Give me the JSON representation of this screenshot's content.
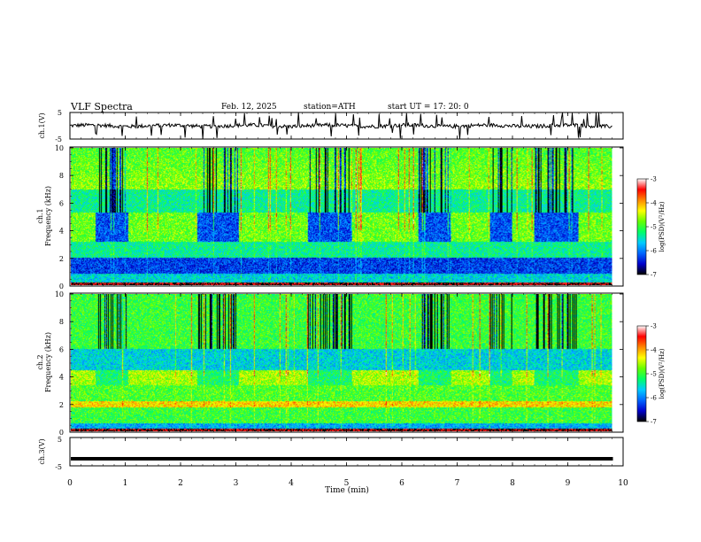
{
  "header": {
    "title": "VLF  Spectra",
    "date": "Feb. 12, 2025",
    "station": "station=ATH",
    "start": "start  UT  =    17: 20: 0"
  },
  "chart_data": [
    {
      "type": "line",
      "name": "ch1-waveform",
      "ylabel": "ch.1(V)",
      "ylim": [
        -5,
        5
      ],
      "yticks": [
        "5",
        "-5"
      ],
      "x_range_min": [
        0,
        9.8
      ],
      "baseline_volts": 0,
      "noise_amplitude_volts": 1,
      "spike_count_approx": 40
    },
    {
      "type": "heatmap",
      "name": "ch1-spectrogram",
      "ylabel": "ch.1\nFrequency (kHz)",
      "ylabel_lines": [
        "ch.1",
        "Frequency  (kHz)"
      ],
      "ylim": [
        0,
        10
      ],
      "yticks": [
        "0",
        "2",
        "4",
        "6",
        "8",
        "10"
      ],
      "x_range_min": [
        0,
        9.8
      ],
      "colorbar": {
        "label": "log(PSD)(V²/Hz)",
        "range": [
          -7,
          -3
        ],
        "ticks": [
          "-3",
          "-4",
          "-5",
          "-6",
          "-7"
        ],
        "colors": [
          "#000000",
          "#0000cc",
          "#0066ff",
          "#00ccff",
          "#00ff66",
          "#66ff00",
          "#ffff00",
          "#ff8800",
          "#ff0000",
          "#ffffff"
        ]
      },
      "blocks_min": [
        [
          0.45,
          1.05
        ],
        [
          2.3,
          3.05
        ],
        [
          4.3,
          5.1
        ],
        [
          6.3,
          6.9
        ],
        [
          7.6,
          8.0
        ],
        [
          8.4,
          9.2
        ]
      ]
    },
    {
      "type": "heatmap",
      "name": "ch2-spectrogram",
      "ylabel": "ch.2\nFrequency (kHz)",
      "ylabel_lines": [
        "ch.2",
        "Frequency  (kHz)"
      ],
      "ylim": [
        0,
        10
      ],
      "yticks": [
        "0",
        "2",
        "4",
        "6",
        "8",
        "10"
      ],
      "x_range_min": [
        0,
        9.8
      ],
      "colorbar": {
        "label": "log(PSD)(V²/Hz)",
        "range": [
          -7,
          -3
        ],
        "ticks": [
          "-3",
          "-4",
          "-5",
          "-6",
          "-7"
        ],
        "colors": [
          "#000000",
          "#0000cc",
          "#0066ff",
          "#00ccff",
          "#00ff66",
          "#66ff00",
          "#ffff00",
          "#ff8800",
          "#ff0000",
          "#ffffff"
        ]
      },
      "blocks_min": [
        [
          0.45,
          1.05
        ],
        [
          2.3,
          3.05
        ],
        [
          4.3,
          5.1
        ],
        [
          6.3,
          6.9
        ],
        [
          7.6,
          8.0
        ],
        [
          8.4,
          9.2
        ]
      ]
    },
    {
      "type": "line",
      "name": "ch3-waveform",
      "ylabel": "ch.3(V)",
      "ylim": [
        -5,
        5
      ],
      "yticks": [
        "5",
        "-5"
      ],
      "x_range_min": [
        0,
        9.8
      ],
      "baseline_volts": -2.5,
      "noise_amplitude_volts": 0
    }
  ],
  "xaxis": {
    "label": "Time  (min)",
    "ticks": [
      "0",
      "1",
      "2",
      "3",
      "4",
      "5",
      "6",
      "7",
      "8",
      "9",
      "10"
    ],
    "range": [
      0,
      10
    ]
  }
}
